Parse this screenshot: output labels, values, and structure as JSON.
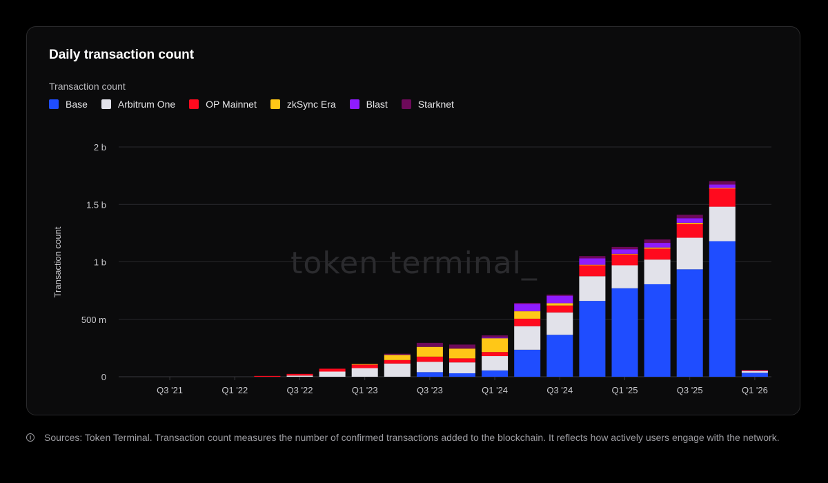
{
  "card": {
    "title": "Daily transaction count",
    "legend_title": "Transaction count"
  },
  "footer": {
    "info_icon": "info-icon",
    "text": "Sources: Token Terminal. Transaction count measures the number of confirmed transactions added to the blockchain. It reflects how actively users engage with the network."
  },
  "watermark": "token terminal_",
  "chart_data": {
    "type": "bar",
    "stacked": true,
    "title": "Daily transaction count",
    "ylabel": "Transaction count",
    "xlabel": "",
    "ylim": [
      0,
      2000000000
    ],
    "y_ticks": [
      {
        "value": 0,
        "label": "0"
      },
      {
        "value": 500000000,
        "label": "500 m"
      },
      {
        "value": 1000000000,
        "label": "1 b"
      },
      {
        "value": 1500000000,
        "label": "1.5 b"
      },
      {
        "value": 2000000000,
        "label": "2 b"
      }
    ],
    "x_tick_labels": [
      {
        "index": 1,
        "label": "Q3 '21"
      },
      {
        "index": 3,
        "label": "Q1 '22"
      },
      {
        "index": 5,
        "label": "Q3 '22"
      },
      {
        "index": 7,
        "label": "Q1 '23"
      },
      {
        "index": 9,
        "label": "Q3 '23"
      },
      {
        "index": 11,
        "label": "Q1 '24"
      },
      {
        "index": 13,
        "label": "Q3 '24"
      },
      {
        "index": 15,
        "label": "Q1 '25"
      },
      {
        "index": 17,
        "label": "Q3 '25"
      },
      {
        "index": 19,
        "label": "Q1 '26"
      }
    ],
    "categories": [
      "Q2 '21",
      "Q3 '21",
      "Q4 '21",
      "Q1 '22",
      "Q2 '22",
      "Q3 '22",
      "Q4 '22",
      "Q1 '23",
      "Q2 '23",
      "Q3 '23",
      "Q4 '23",
      "Q1 '24",
      "Q2 '24",
      "Q3 '24",
      "Q4 '24",
      "Q1 '25",
      "Q2 '25",
      "Q3 '25",
      "Q4 '25",
      "Q1 '26"
    ],
    "series": [
      {
        "name": "Base",
        "color": "#1f4dff",
        "values": [
          0,
          0,
          0,
          0,
          0,
          0,
          0,
          0,
          0,
          40000000,
          30000000,
          55000000,
          235000000,
          365000000,
          660000000,
          770000000,
          805000000,
          935000000,
          1180000000,
          35000000
        ]
      },
      {
        "name": "Arbitrum One",
        "color": "#e2e2ea",
        "values": [
          0,
          0,
          0,
          0,
          0,
          10000000,
          45000000,
          75000000,
          115000000,
          90000000,
          95000000,
          125000000,
          205000000,
          195000000,
          215000000,
          200000000,
          215000000,
          275000000,
          300000000,
          15000000
        ]
      },
      {
        "name": "OP Mainnet",
        "color": "#ff0a1e",
        "values": [
          0,
          0,
          0,
          0,
          7000000,
          15000000,
          25000000,
          30000000,
          30000000,
          45000000,
          35000000,
          35000000,
          65000000,
          60000000,
          95000000,
          95000000,
          95000000,
          120000000,
          160000000,
          8000000
        ]
      },
      {
        "name": "zkSync Era",
        "color": "#ffc717",
        "values": [
          0,
          0,
          0,
          0,
          0,
          0,
          0,
          5000000,
          45000000,
          85000000,
          85000000,
          120000000,
          65000000,
          20000000,
          5000000,
          5000000,
          10000000,
          10000000,
          3000000,
          0
        ]
      },
      {
        "name": "Blast",
        "color": "#8f1cff",
        "values": [
          0,
          0,
          0,
          0,
          0,
          0,
          0,
          0,
          0,
          0,
          0,
          5000000,
          65000000,
          65000000,
          55000000,
          40000000,
          40000000,
          40000000,
          30000000,
          0
        ]
      },
      {
        "name": "Starknet",
        "color": "#6d0a5a",
        "values": [
          0,
          0,
          0,
          0,
          0,
          0,
          0,
          0,
          10000000,
          35000000,
          35000000,
          20000000,
          8000000,
          10000000,
          20000000,
          20000000,
          30000000,
          30000000,
          30000000,
          2000000
        ]
      }
    ]
  }
}
